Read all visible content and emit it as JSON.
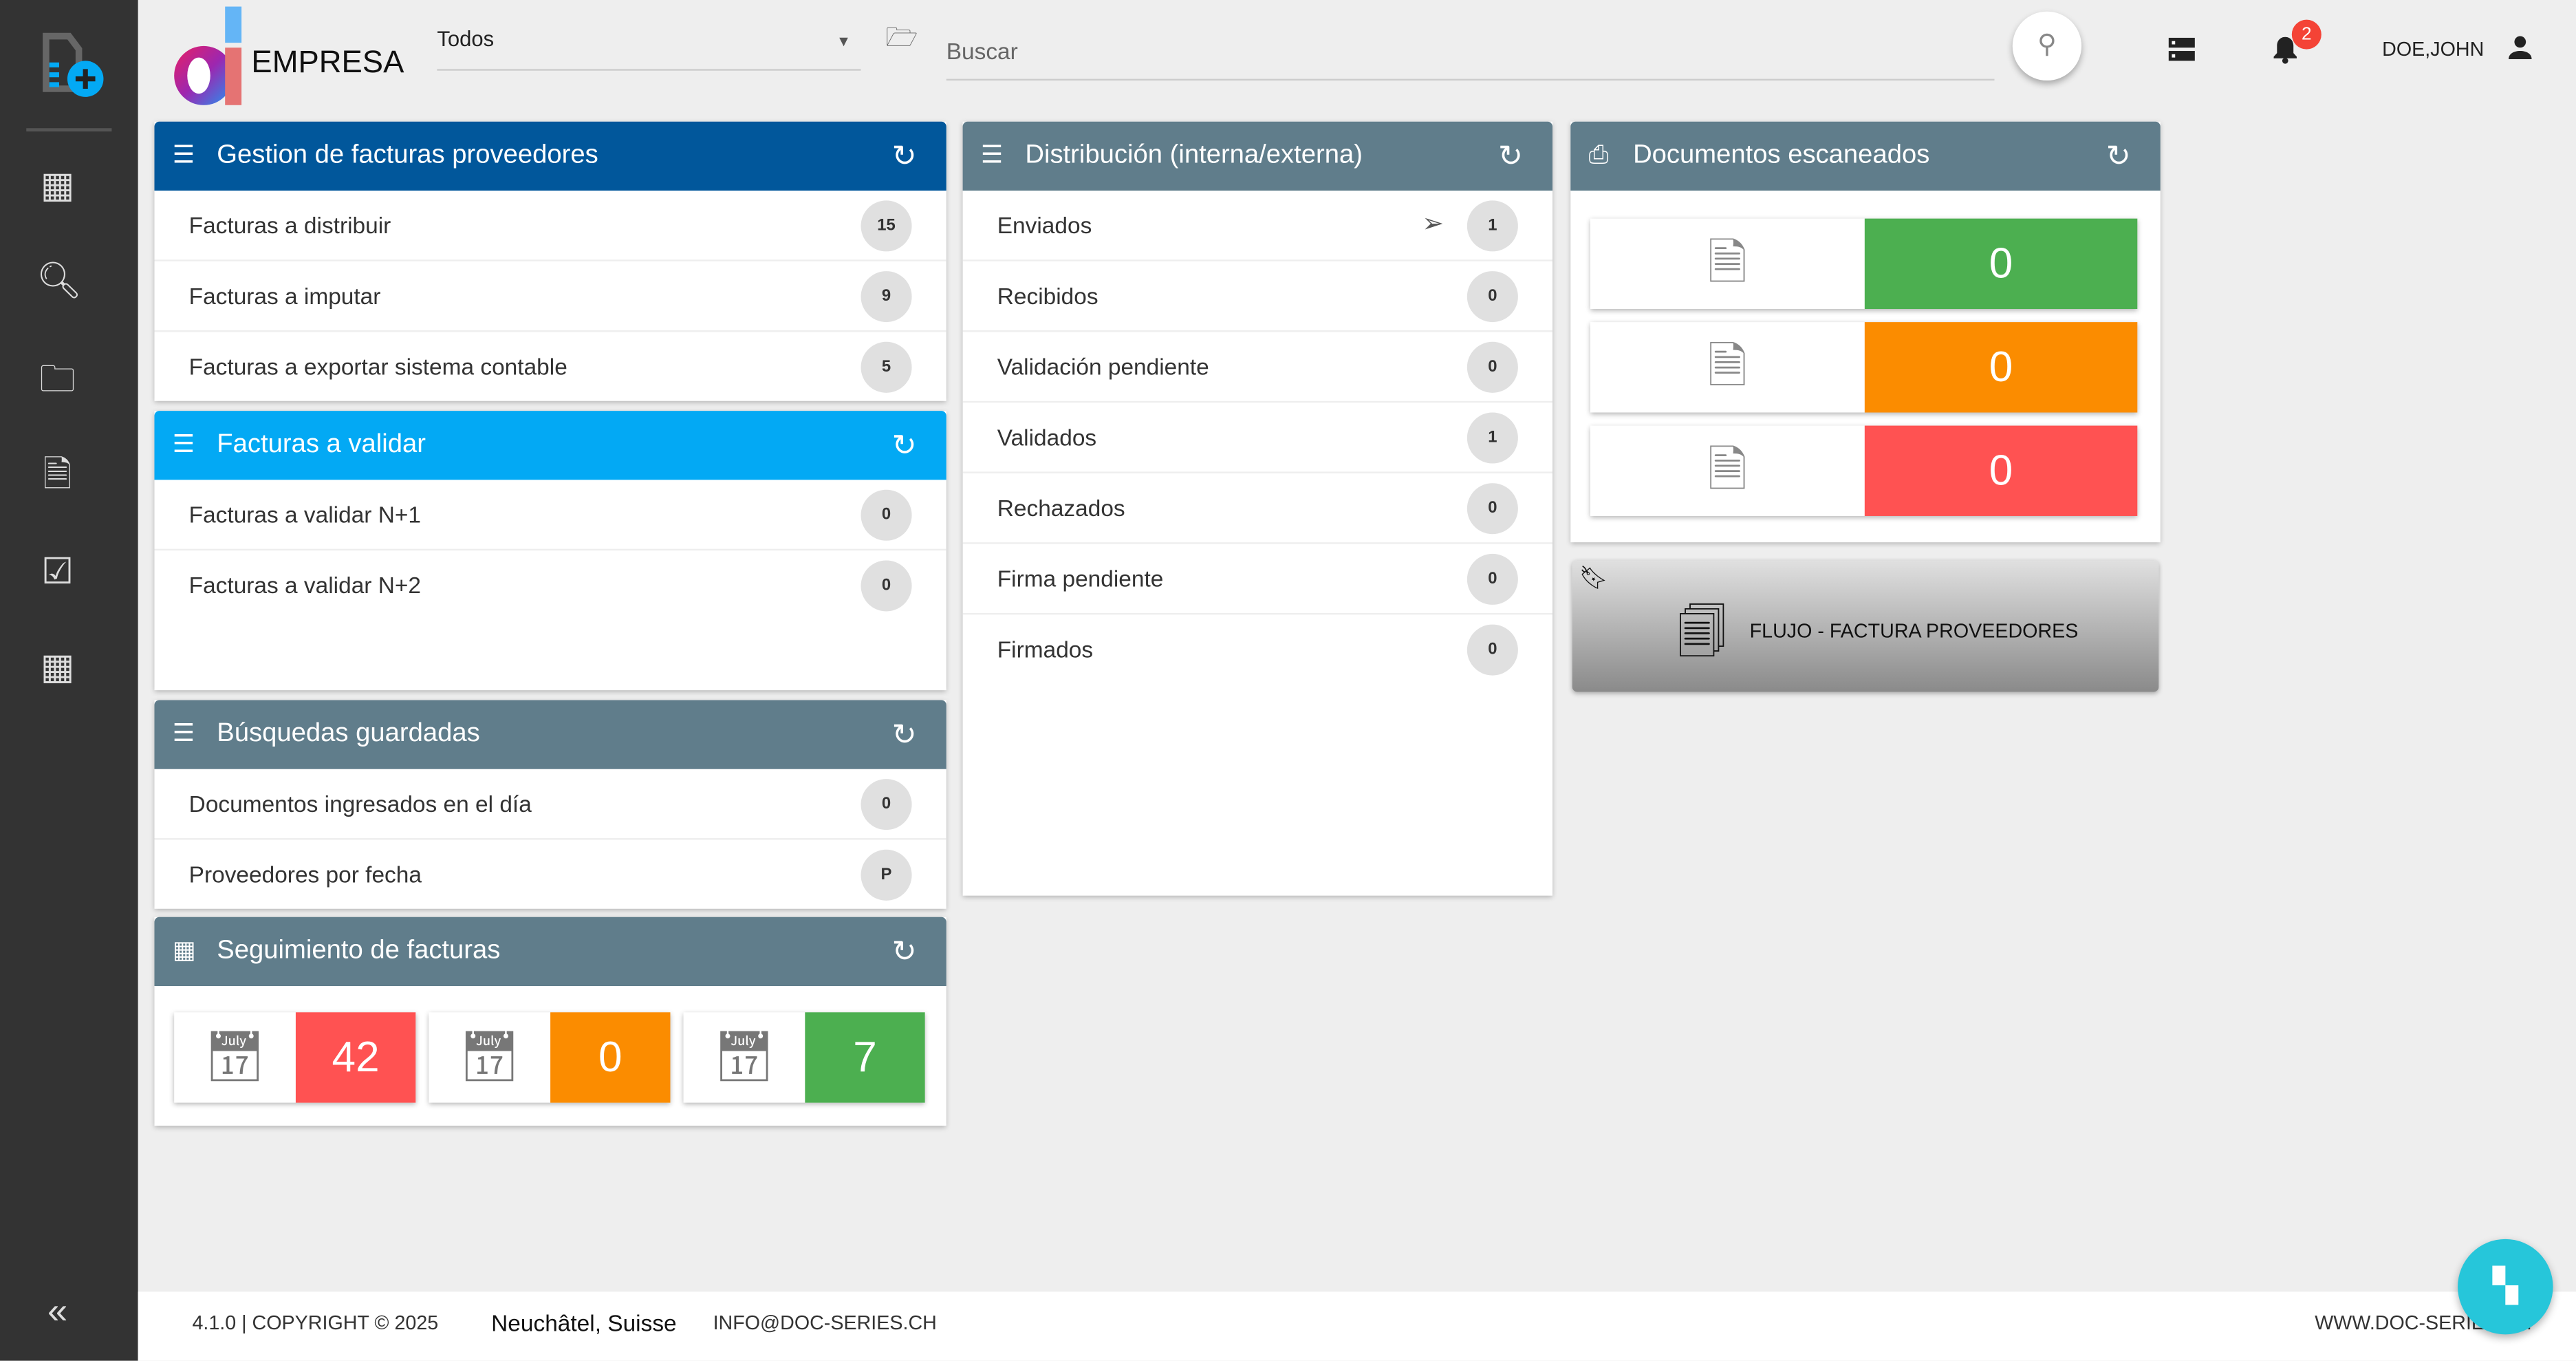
{
  "header": {
    "brand": "EMPRESA",
    "filter_value": "Todos",
    "search_placeholder": "Buscar",
    "notifications": "2",
    "user": "DOE,JOHN"
  },
  "colors": {
    "sidebar": "#333333",
    "primary": "#01579b",
    "light_blue": "#03a9f4",
    "slate": "#607d8b",
    "green": "#4caf50",
    "orange": "#fb8c00",
    "red": "#ff5252"
  },
  "gestion": {
    "title": "Gestion de facturas proveedores",
    "items": [
      {
        "label": "Facturas a distribuir",
        "count": "15"
      },
      {
        "label": "Facturas a imputar",
        "count": "9"
      },
      {
        "label": "Facturas a exportar sistema contable",
        "count": "5"
      }
    ]
  },
  "validar": {
    "title": "Facturas a validar",
    "items": [
      {
        "label": "Facturas a validar N+1",
        "count": "0"
      },
      {
        "label": "Facturas a validar N+2",
        "count": "0"
      }
    ]
  },
  "busquedas": {
    "title": "Búsquedas guardadas",
    "items": [
      {
        "label": "Documentos ingresados en el día",
        "count": "0"
      },
      {
        "label": "Proveedores por fecha",
        "count": "P"
      }
    ]
  },
  "seguimiento": {
    "title": "Seguimiento de facturas",
    "tiles": [
      {
        "icon": "calendar-alert-icon",
        "value": "42"
      },
      {
        "icon": "calendar-clock-icon",
        "value": "0"
      },
      {
        "icon": "calendar-check-icon",
        "value": "7"
      }
    ]
  },
  "distribucion": {
    "title": "Distribución (interna/externa)",
    "items": [
      {
        "label": "Enviados",
        "count": "1"
      },
      {
        "label": "Recibidos",
        "count": "0"
      },
      {
        "label": "Validación pendiente",
        "count": "0"
      },
      {
        "label": "Validados",
        "count": "1"
      },
      {
        "label": "Rechazados",
        "count": "0"
      },
      {
        "label": "Firma pendiente",
        "count": "0"
      },
      {
        "label": "Firmados",
        "count": "0"
      }
    ]
  },
  "escaneados": {
    "title": "Documentos escaneados",
    "tiles": [
      {
        "icon": "document-check-icon",
        "value": "0"
      },
      {
        "icon": "document-icon",
        "value": "0"
      },
      {
        "icon": "document-cancel-icon",
        "value": "0"
      }
    ]
  },
  "flow": {
    "label": "FLUJO - FACTURA PROVEEDORES"
  },
  "footer": {
    "version": "4.1.0 | COPYRIGHT © 2025",
    "location": "Neuchâtel, Suisse",
    "email": "INFO@DOC-SERIES.CH",
    "website": "WWW.DOC-SERIES.CH"
  }
}
